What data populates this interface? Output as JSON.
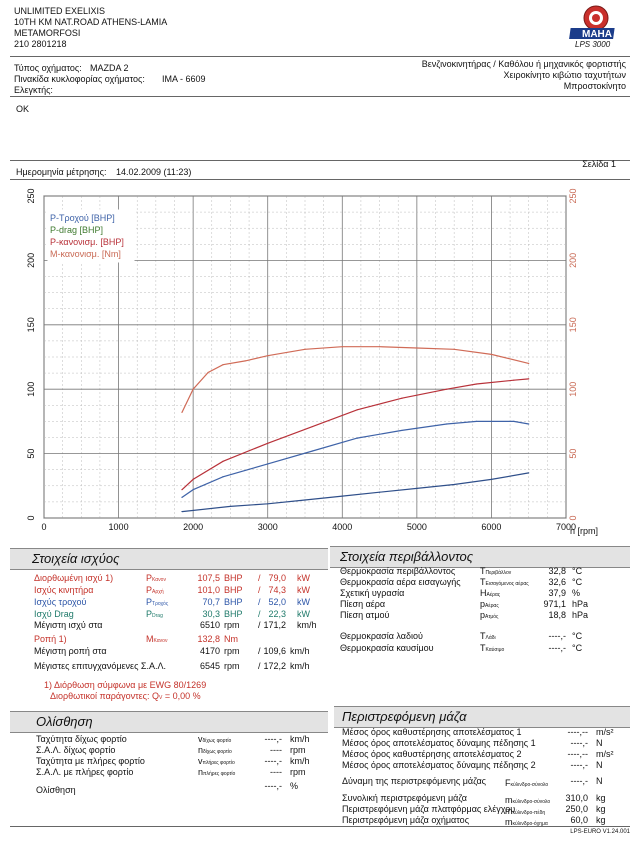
{
  "header": {
    "company": "UNLIMITED EXELIXIS",
    "address": "10TH KM NAT.ROAD ATHENS-LAMIA",
    "city": "METAMORFOSI",
    "phone": "210 2801218",
    "brand": "MAHA",
    "model": "LPS 3000"
  },
  "vehicle": {
    "type_label": "Τύπος οχήματος:",
    "type_value": "MAZDA  2",
    "plate_label": "Πινακίδα κυκλοφορίας οχήματος:",
    "plate_value": "IMA - 6609",
    "inspector_label": "Ελεγκτής:",
    "fuel": "Βενζινοκινητήρας / Καθόλου ή μηχανικός φορτιστής",
    "gearbox": "Χειροκίνητο κιβώτιο ταχυτήτων",
    "drive": "Μπροστοκίνητο"
  },
  "remark": "OK",
  "measurement": {
    "date_label": "Ημερομηνία μέτρησης:",
    "date_value": "14.02.2009 (11:23)",
    "page": "Σελίδα 1"
  },
  "chart_data": {
    "type": "line",
    "x_unit": "n [rpm]",
    "xlim": [
      0,
      7000
    ],
    "ylim_left": [
      0,
      250
    ],
    "ylim_right": [
      0,
      250
    ],
    "x_ticks": [
      0,
      1000,
      2000,
      3000,
      4000,
      5000,
      6000,
      7000
    ],
    "y_ticks": [
      0,
      50,
      100,
      150,
      200,
      250
    ],
    "grid": true,
    "legend_position": "top-left",
    "series": [
      {
        "name": "P-Τροχού [BHP]",
        "color": "#3f63a8",
        "x": [
          1850,
          2000,
          2400,
          3000,
          3600,
          4200,
          4800,
          5400,
          5800,
          6300,
          6500
        ],
        "values": [
          16,
          22,
          32,
          42,
          52,
          62,
          68,
          73,
          75,
          75,
          73
        ]
      },
      {
        "name": "P-drag [BHP]",
        "color": "#2f4f8a",
        "x": [
          1850,
          2500,
          3000,
          3500,
          4000,
          4500,
          5000,
          5500,
          6000,
          6500
        ],
        "values": [
          5,
          9,
          11,
          14,
          17,
          20,
          23,
          26,
          30,
          35
        ]
      },
      {
        "name": "P-κανονισμ. [BHP]",
        "color": "#b8323a",
        "x": [
          1850,
          2000,
          2400,
          3000,
          3600,
          4200,
          4800,
          5400,
          5800,
          6300,
          6500
        ],
        "values": [
          22,
          30,
          44,
          58,
          71,
          84,
          93,
          100,
          104,
          107,
          108
        ]
      },
      {
        "name": "M-κανονισμ. [Nm]",
        "color": "#d06b57",
        "x": [
          1850,
          2000,
          2200,
          2400,
          2700,
          3000,
          3500,
          4000,
          4500,
          5000,
          5500,
          6000,
          6500
        ],
        "values": [
          82,
          100,
          113,
          119,
          122,
          126,
          131,
          133,
          133,
          132,
          131,
          127,
          120
        ]
      }
    ]
  },
  "power": {
    "title": "Στοιχεία ισχύος",
    "rows": [
      {
        "label": "Διορθωμένη ισχύ 1)",
        "sym": "P",
        "sub": "Κανον",
        "v1": "107,5",
        "u1": "BHP",
        "sep": "/",
        "v2": "79,0",
        "u2": "kW",
        "color": "#c4322a"
      },
      {
        "label": "Ισχύς κινητήρα",
        "sym": "P",
        "sub": "Αρχή",
        "v1": "101,0",
        "u1": "BHP",
        "sep": "/",
        "v2": "74,3",
        "u2": "kW",
        "color": "#c4322a"
      },
      {
        "label": "Ισχύς τροχού",
        "sym": "P",
        "sub": "Τροχός",
        "v1": "70,7",
        "u1": "BHP",
        "sep": "/",
        "v2": "52,0",
        "u2": "kW",
        "color": "#2d56a8"
      },
      {
        "label": "Ισχύ Drag",
        "sym": "P",
        "sub": "Drag",
        "v1": "30,3",
        "u1": "BHP",
        "sep": "/",
        "v2": "22,3",
        "u2": "kW",
        "color": "#1f7a6a"
      },
      {
        "label": "Μέγιστη ισχύ στα",
        "sym": "",
        "sub": "",
        "v1": "6510",
        "u1": "rpm",
        "sep": "/",
        "v2": "171,2",
        "u2": "km/h",
        "color": "#111111"
      }
    ],
    "torque_label": "Ροπή 1)",
    "torque_sym": "M",
    "torque_sub": "Κανον",
    "torque_value": "132,8",
    "torque_unit": "Nm",
    "maxtorque_label": "Μέγιστη ροπή στα",
    "maxtorque_rpm": "4170",
    "maxtorque_rpm_unit": "rpm",
    "maxtorque_speed": "109,6",
    "maxtorque_speed_unit": "km/h",
    "maxspeed_label": "Μέγιστες επιτυγχανόμενες Σ.Α.Λ.",
    "maxspeed_rpm": "6545",
    "maxspeed_rpm_unit": "rpm",
    "maxspeed_speed": "172,2",
    "maxspeed_speed_unit": "km/h",
    "note1": "1) Διόρθωση σύμφωνα με EWG 80/1269",
    "note2": "Διορθωτικοί παράγοντες: Q",
    "note2_sub": "V",
    "note2_value": "=   0,00 %"
  },
  "environment": {
    "title": "Στοιχεία περιβάλλοντος",
    "rows": [
      {
        "label": "Θερμοκρασία περιβάλλοντος",
        "sym": "T",
        "sub": "Περιβάλλον",
        "value": "32,8",
        "unit": "°C"
      },
      {
        "label": "Θερμοκρασία αέρα εισαγωγής",
        "sym": "T",
        "sub": "Εισαγόμενος αέρας",
        "value": "32,6",
        "unit": "°C"
      },
      {
        "label": "Σχετική υγρασία",
        "sym": "H",
        "sub": "Αέρας",
        "value": "37,9",
        "unit": "%"
      },
      {
        "label": "Πίεση αέρα",
        "sym": "p",
        "sub": "Αέρας",
        "value": "971,1",
        "unit": "hPa"
      },
      {
        "label": "Πίεση ατμού",
        "sym": "p",
        "sub": "Ατμός",
        "value": "18,8",
        "unit": "hPa"
      }
    ],
    "rows2": [
      {
        "label": "Θερμοκρασία λαδιού",
        "sym": "T",
        "sub": "Λάδι",
        "value": "----,-",
        "unit": "°C"
      },
      {
        "label": "Θερμοκρασία καυσίμου",
        "sym": "T",
        "sub": "Καύσιμο",
        "value": "----,-",
        "unit": "°C"
      }
    ]
  },
  "coastdown": {
    "title": "Ολίσθηση",
    "rows": [
      {
        "label": "Ταχύτητα δίχως φορτίο",
        "sym": "v",
        "sub": "δίχως φορτίο",
        "value": "----,-",
        "unit": "km/h"
      },
      {
        "label": "Σ.Α.Λ. δίχως φορτίο",
        "sym": "n",
        "sub": "δίχως φορτίο",
        "value": "----",
        "unit": "rpm"
      },
      {
        "label": "Ταχύτητα με πλήρες φορτίο",
        "sym": "v",
        "sub": "πλήρες φορτίο",
        "value": "----,-",
        "unit": "km/h"
      },
      {
        "label": "Σ.Α.Λ. με πλήρες φορτίο",
        "sym": "n",
        "sub": "πλήρες φορτίο",
        "value": "----",
        "unit": "rpm"
      }
    ],
    "slip_label": "Ολίσθηση",
    "slip_value": "----,-",
    "slip_unit": "%"
  },
  "rotating_mass": {
    "title": "Περιστρεφόμενη μάζα",
    "rows": [
      {
        "label": "Μέσος όρος καθυστέρησης αποτελέσματος 1",
        "value": "----,--",
        "unit": "m/s²"
      },
      {
        "label": "Μέσος όρος αποτελέσματος δύναμης πέδησης 1",
        "value": "----,-",
        "unit": "N"
      },
      {
        "label": "Μέσος όρος καθυστέρησης αποτελέσματος 2",
        "value": "----,--",
        "unit": "m/s²"
      },
      {
        "label": "Μέσος όρος αποτελέσματος δύναμης πέδησης 2",
        "value": "----,-",
        "unit": "N"
      },
      {
        "label": "Δύναμη της περιστρεφόμενης μάζας",
        "sym": "F",
        "sub": "κύλινδρο-σύνολο",
        "value": "----,-",
        "unit": "N"
      },
      {
        "label": "Συνολική περιστρεφόμενη μάζα",
        "sym": "m",
        "sub": "κύλινδρο-σύνολο",
        "value": "310,0",
        "unit": "kg"
      },
      {
        "label": "Περιστρεφόμενη μάζα πλατφόρμας ελέγχου",
        "sym": "m",
        "sub": "κύλινδρο-πέδη",
        "value": "250,0",
        "unit": "kg"
      },
      {
        "label": "Περιστρεφόμενη μάζα οχήματος",
        "sym": "m",
        "sub": "κύλινδρο-όχημα",
        "value": "60,0",
        "unit": "kg"
      }
    ]
  },
  "footer": {
    "version": "LPS-EURO V1.24.001"
  }
}
